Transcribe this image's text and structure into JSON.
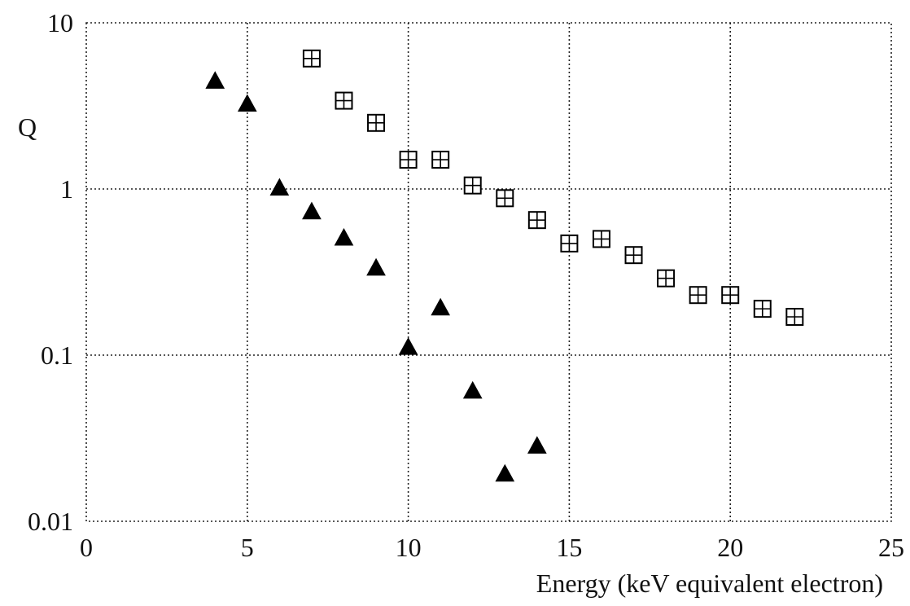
{
  "chart_data": {
    "type": "scatter",
    "title": "",
    "xlabel": "Energy (keV equivalent electron)",
    "ylabel": "Q",
    "xlim": [
      0,
      25
    ],
    "ylim": [
      0.01,
      10
    ],
    "yscale": "log",
    "grid": true,
    "x_ticks": [
      "0",
      "5",
      "10",
      "15",
      "20",
      "25"
    ],
    "y_ticks": [
      "0.01",
      "0.1",
      "1",
      "10"
    ],
    "series": [
      {
        "marker": "filled-triangle",
        "color": "#000000",
        "points": [
          {
            "x": 4,
            "y": 4.4
          },
          {
            "x": 5,
            "y": 3.2
          },
          {
            "x": 6,
            "y": 1.0
          },
          {
            "x": 7,
            "y": 0.72
          },
          {
            "x": 8,
            "y": 0.5
          },
          {
            "x": 9,
            "y": 0.33
          },
          {
            "x": 10,
            "y": 0.11
          },
          {
            "x": 11,
            "y": 0.19
          },
          {
            "x": 12,
            "y": 0.06
          },
          {
            "x": 13,
            "y": 0.019
          },
          {
            "x": 14,
            "y": 0.028
          }
        ]
      },
      {
        "marker": "open-square-cross",
        "color": "#000000",
        "points": [
          {
            "x": 7,
            "y": 6.1
          },
          {
            "x": 8,
            "y": 3.4
          },
          {
            "x": 9,
            "y": 2.5
          },
          {
            "x": 10,
            "y": 1.5
          },
          {
            "x": 11,
            "y": 1.5
          },
          {
            "x": 12,
            "y": 1.05
          },
          {
            "x": 13,
            "y": 0.88
          },
          {
            "x": 14,
            "y": 0.65
          },
          {
            "x": 15,
            "y": 0.47
          },
          {
            "x": 16,
            "y": 0.5
          },
          {
            "x": 17,
            "y": 0.4
          },
          {
            "x": 18,
            "y": 0.29
          },
          {
            "x": 19,
            "y": 0.23
          },
          {
            "x": 20,
            "y": 0.23
          },
          {
            "x": 21,
            "y": 0.19
          },
          {
            "x": 22,
            "y": 0.17
          }
        ]
      }
    ]
  }
}
